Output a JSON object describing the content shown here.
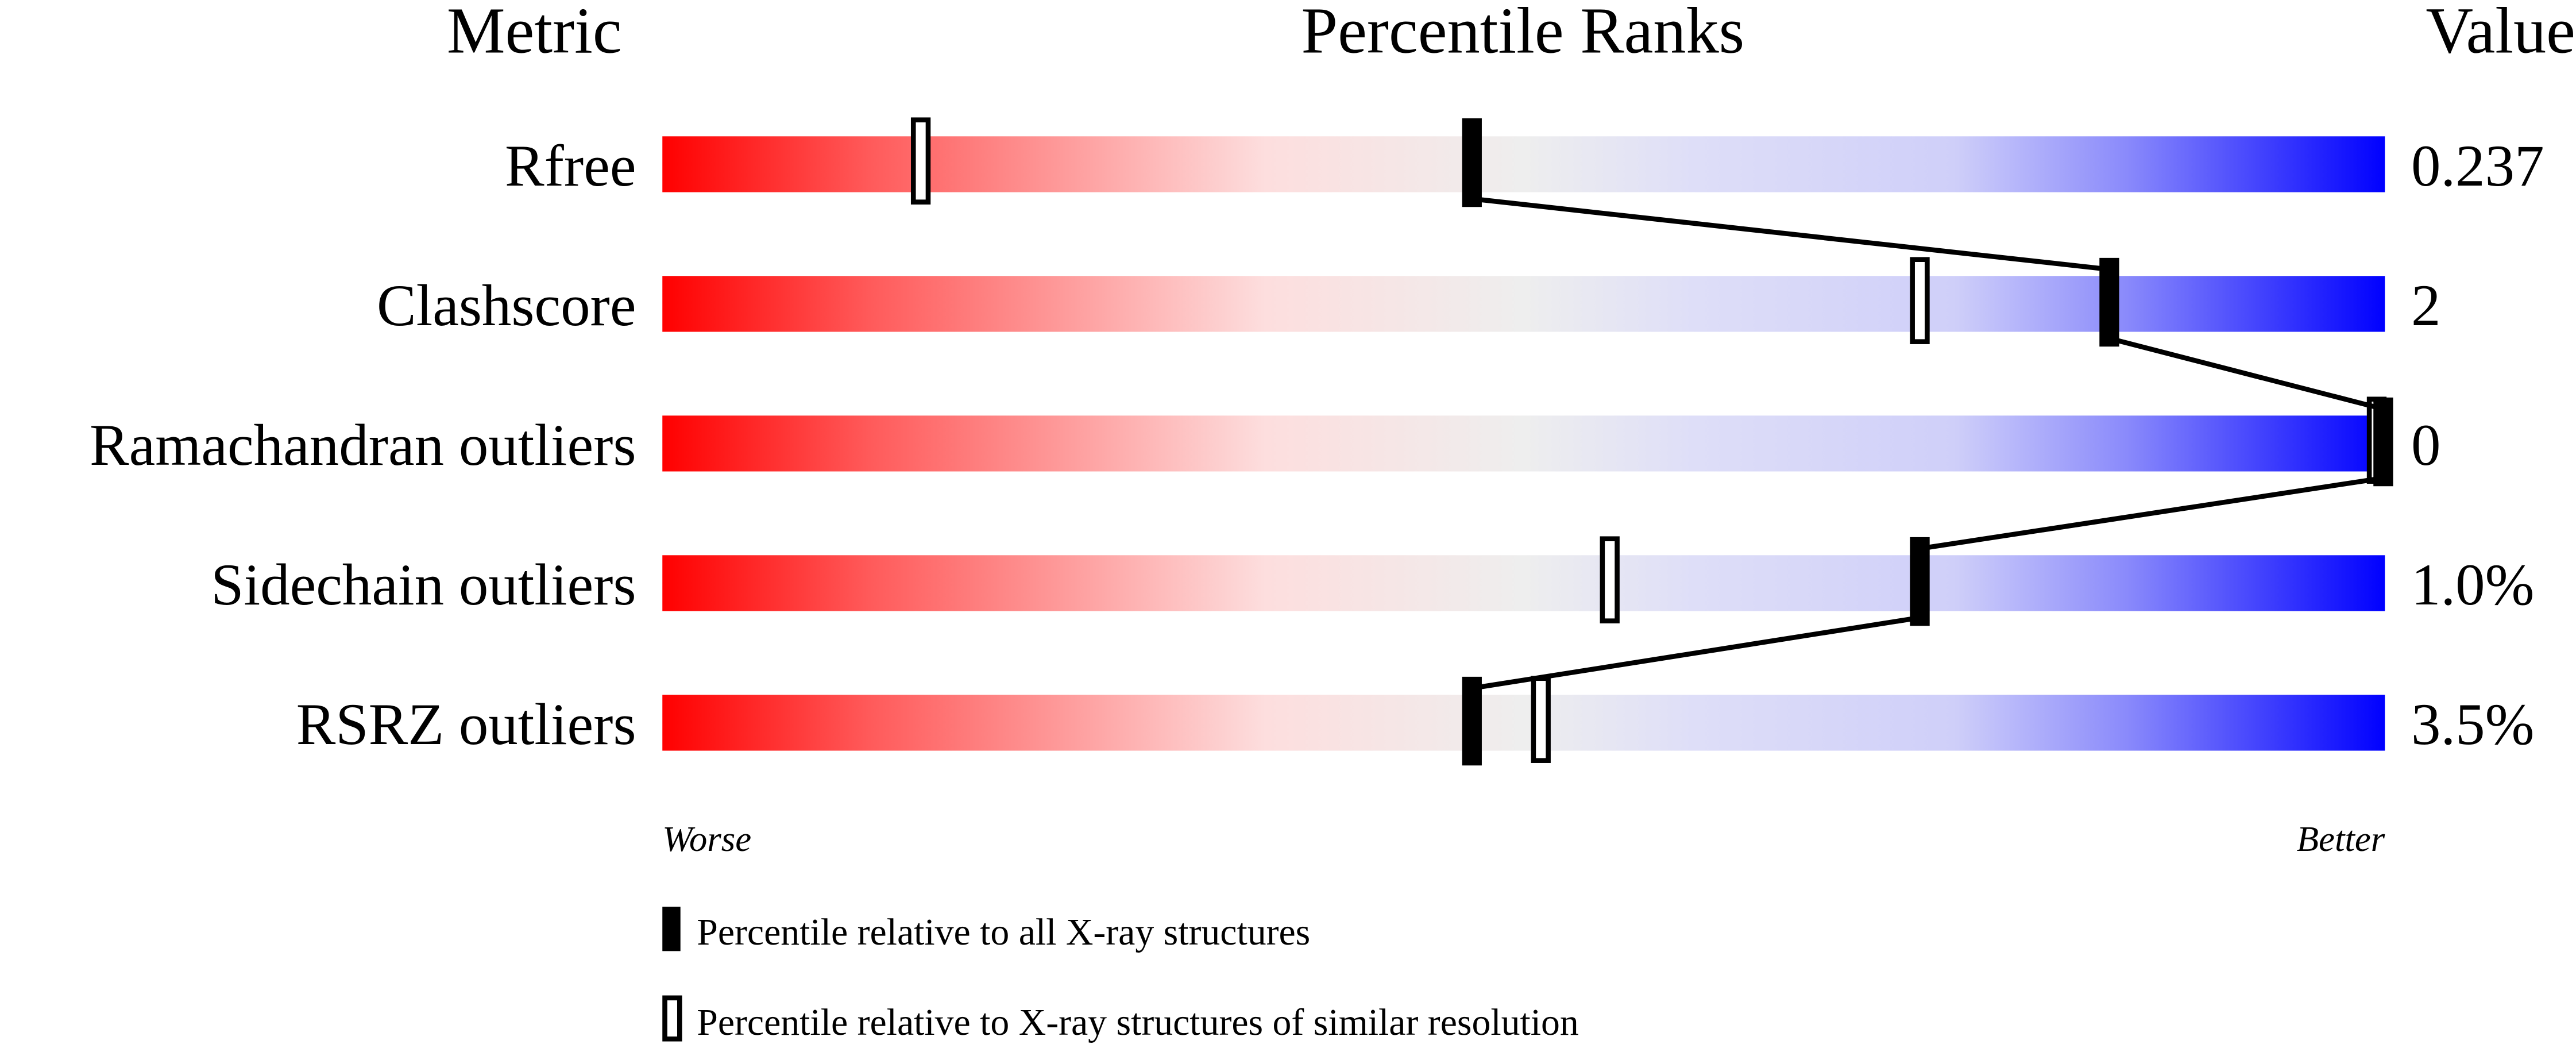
{
  "chart_data": {
    "type": "percentile-bar",
    "headers": {
      "metric": "Metric",
      "ranks": "Percentile Ranks",
      "value": "Value"
    },
    "xlim": [
      0,
      100
    ],
    "axis_labels": {
      "left": "Worse",
      "right": "Better"
    },
    "colors": {
      "worse": "#ff0000",
      "middle": "#eeeeee",
      "better": "#0000ff"
    },
    "rows": [
      {
        "metric": "Rfree",
        "value": "0.237",
        "percentile_all": 47,
        "percentile_similar": 15
      },
      {
        "metric": "Clashscore",
        "value": "2",
        "percentile_all": 84,
        "percentile_similar": 73
      },
      {
        "metric": "Ramachandran outliers",
        "value": "0",
        "percentile_all": 100,
        "percentile_similar": 100
      },
      {
        "metric": "Sidechain outliers",
        "value": "1.0%",
        "percentile_all": 73,
        "percentile_similar": 55
      },
      {
        "metric": "RSRZ outliers",
        "value": "3.5%",
        "percentile_all": 47,
        "percentile_similar": 51
      }
    ],
    "legend": [
      {
        "marker": "filled",
        "label": "Percentile relative to all X-ray structures"
      },
      {
        "marker": "open",
        "label": "Percentile relative to X-ray structures of similar resolution"
      }
    ]
  }
}
